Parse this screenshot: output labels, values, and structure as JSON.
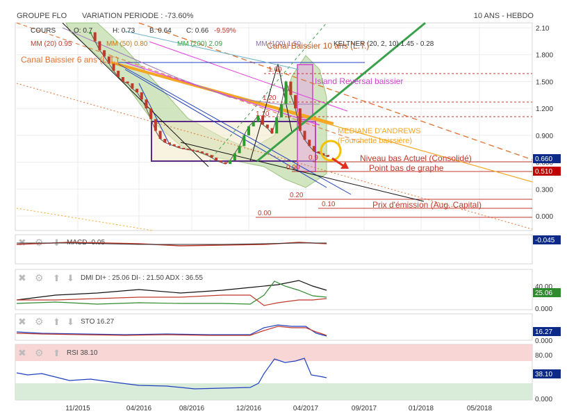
{
  "header": {
    "name": "GROUPE FLO",
    "variation": "VARIATION PERIODE : -73.60%",
    "period": "10 ANS - HEBDO"
  },
  "legend": {
    "cours": "COURS",
    "o": "O: 0.7",
    "h": "H: 0.73",
    "b": "B: 0.64",
    "c": "C: 0.66",
    "chg": "-9.59%",
    "mm20": "MM (20) 0.95",
    "mm50": "MM (50) 0.80",
    "mm200": "MM (200) 2.09",
    "mm100": "MM (100) 1.50",
    "keltner": "KELTNER (20, 2, 10) 1.45 - 0.28"
  },
  "annotations": {
    "canal_baissier_6": "Canal Baissier 6 ans (L.T.)",
    "canal_baissier_10": "Canal Baissier 10 ans (L.T.)",
    "island": "Island Reversal baissier",
    "mediane": "MEDIANE D'ANDREWS",
    "fourchette": "(Fourchette baissière)",
    "niveau_bas": "Niveau bas Actuel (Consolidé)",
    "point_bas": "Point bas de graphe",
    "prix_emission": "Prix d'émission (Aug. Capital)",
    "lvl_160": "1.60",
    "lvl_120": "1.20",
    "lvl_110": "1.10",
    "lvl_090": "0.90",
    "lvl_085": "0.9",
    "lvl_020": "0.20",
    "lvl_010": "0.10",
    "lvl_000": "0.00"
  },
  "badges": {
    "price": "0.660",
    "low": "0.510",
    "macd": "-0.045",
    "dmi": "25.06",
    "sto": "16.27",
    "rsi": "38.10"
  },
  "indicators": {
    "macd": "MACD -0.05",
    "dmi": "DMI DI+ : 25.06 DI- : 21.50 ADX : 36.55",
    "sto": "STO 16.27",
    "rsi": "RSI 38.10"
  },
  "panel_ticks": {
    "dmi_top": "40.00",
    "dmi_bottom": "0.000",
    "sto_bottom": "0.000",
    "rsi_top": "80.00",
    "rsi_bottom": "0.000"
  },
  "colors": {
    "up": "#2e9b2e",
    "down": "#c0392b",
    "orange": "#f5a623",
    "magenta": "#e040e0",
    "keltner_fill": "#b8d8a0",
    "badge_blue": "#0b2a8a",
    "badge_red": "#c00000"
  },
  "chart_data": {
    "type": "line",
    "y_axis": {
      "min": 0.0,
      "max": 2.1,
      "ticks": [
        "2.10",
        "1.800",
        "1.500",
        "1.200",
        "0.900",
        "0.600",
        "0.300",
        "0.000"
      ],
      "values": [
        2.1,
        1.8,
        1.5,
        1.2,
        0.9,
        0.6,
        0.3,
        0.0
      ]
    },
    "x_axis": {
      "ticks": [
        "11/2015",
        "04/2016",
        "08/2016",
        "12/2016",
        "04/2017",
        "09/2017",
        "01/2018",
        "05/2018"
      ]
    },
    "series": [
      {
        "values": [
          2.05,
          1.95,
          1.85,
          1.78,
          1.7,
          1.62,
          1.55,
          1.5,
          1.48,
          1.42,
          1.38,
          1.3,
          1.2,
          1.08,
          0.95,
          0.86,
          0.82,
          0.8,
          0.78,
          0.76,
          0.75,
          0.74,
          0.73,
          0.72,
          0.7,
          0.68,
          0.65,
          0.62,
          0.6,
          0.58,
          0.62,
          0.7,
          0.78,
          0.9,
          1.0,
          1.05,
          1.12,
          1.02,
          0.98,
          0.92,
          1.1,
          1.25,
          1.5,
          1.35,
          1.2,
          0.95,
          0.85,
          0.78,
          0.72,
          0.7,
          0.68,
          0.66
        ]
      }
    ]
  }
}
